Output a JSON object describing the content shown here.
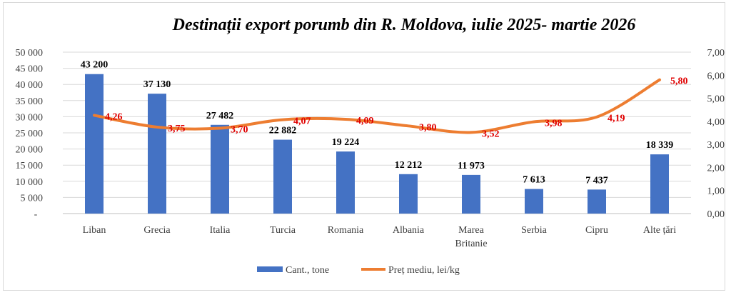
{
  "chart_data": {
    "type": "bar+line",
    "title": "Destinații export porumb din R. Moldova, iulie 2025- martie 2026",
    "categories": [
      "Liban",
      "Grecia",
      "Italia",
      "Turcia",
      "Romania",
      "Albania",
      "Marea Britanie",
      "Serbia",
      "Cipru",
      "Alte țări"
    ],
    "series": [
      {
        "name": "Cant., tone",
        "type": "bar",
        "axis": "left",
        "color": "#4472C4",
        "values": [
          43200,
          37130,
          27482,
          22882,
          19224,
          12212,
          11973,
          7613,
          7437,
          18339
        ],
        "labels": [
          "43 200",
          "37 130",
          "27 482",
          "22 882",
          "19 224",
          "12 212",
          "11 973",
          "7 613",
          "7 437",
          "18 339"
        ]
      },
      {
        "name": "Preț mediu, lei/kg",
        "type": "line",
        "axis": "right",
        "color": "#ED7D31",
        "values": [
          4.26,
          3.75,
          3.7,
          4.07,
          4.09,
          3.8,
          3.52,
          3.98,
          4.19,
          5.8
        ],
        "labels": [
          "4,26",
          "3,75",
          "3,70",
          "4,07",
          "4,09",
          "3,80",
          "3,52",
          "3,98",
          "4,19",
          "5,80"
        ]
      }
    ],
    "y_left": {
      "range": [
        0,
        50000
      ],
      "ticks": [
        "-",
        "5 000",
        "10 000",
        "15 000",
        "20 000",
        "25 000",
        "30 000",
        "35 000",
        "40 000",
        "45 000",
        "50 000"
      ]
    },
    "y_right": {
      "range": [
        0,
        7
      ],
      "ticks": [
        "0,00",
        "1,00",
        "2,00",
        "3,00",
        "4,00",
        "5,00",
        "6,00",
        "7,00"
      ]
    },
    "grid": true,
    "legend": "bottom",
    "label_color": "#E00000"
  }
}
